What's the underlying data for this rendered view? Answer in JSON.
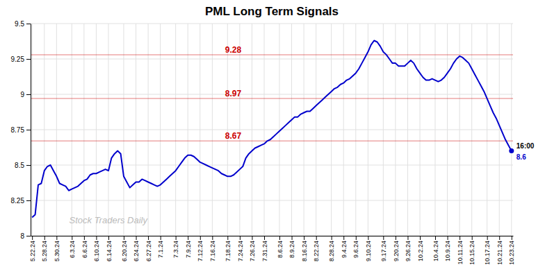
{
  "chart_data": {
    "type": "line",
    "title": "PML Long Term Signals",
    "watermark": "Stock Traders Daily",
    "color": "#0000cc",
    "grid": true,
    "ylim": [
      8.0,
      9.5
    ],
    "yticks": [
      8.0,
      8.25,
      8.5,
      8.75,
      9.0,
      9.25,
      9.5
    ],
    "hlines": [
      {
        "y": 9.28,
        "label": "9.28",
        "color": "#cc0000"
      },
      {
        "y": 8.97,
        "label": "8.97",
        "color": "#cc0000"
      },
      {
        "y": 8.67,
        "label": "8.67",
        "color": "#cc0000"
      }
    ],
    "annotations": [
      {
        "text": "16:00",
        "color": "#000000"
      },
      {
        "text": "8.6",
        "color": "#0000cc"
      }
    ],
    "categories": [
      "5.22.24",
      null,
      null,
      null,
      "5.28.24",
      null,
      null,
      null,
      "5.30.24",
      null,
      null,
      null,
      null,
      "6.3.24",
      null,
      null,
      null,
      "6.6.24",
      null,
      null,
      null,
      "6.10.24",
      null,
      null,
      null,
      "6.14.24",
      null,
      null,
      null,
      null,
      "6.20.24",
      null,
      null,
      null,
      "6.24.24",
      null,
      null,
      null,
      "6.27.24",
      null,
      null,
      null,
      "7.1.24",
      null,
      null,
      null,
      null,
      "7.3.24",
      null,
      null,
      null,
      "7.9.24",
      null,
      null,
      null,
      "7.12.24",
      null,
      null,
      null,
      "7.16.24",
      null,
      null,
      null,
      null,
      "7.18.24",
      null,
      null,
      null,
      "7.24.24",
      null,
      null,
      null,
      "7.26.24",
      null,
      null,
      null,
      "7.31.24",
      null,
      null,
      null,
      null,
      "8.6.24",
      null,
      null,
      null,
      "8.9.24",
      null,
      null,
      null,
      "8.16.24",
      null,
      null,
      null,
      "8.22.24",
      null,
      null,
      null,
      null,
      "8.28.24",
      null,
      null,
      null,
      "9.4.24",
      null,
      null,
      null,
      "9.6.24",
      null,
      null,
      null,
      "9.10.24",
      null,
      null,
      null,
      null,
      "9.17.24",
      null,
      null,
      null,
      "9.20.24",
      null,
      null,
      null,
      "9.26.24",
      null,
      null,
      null,
      "10.2.24",
      null,
      null,
      null,
      null,
      "10.4.24",
      null,
      null,
      null,
      "10.9.24",
      null,
      null,
      null,
      "10.11.24",
      null,
      null,
      null,
      "10.15.24",
      null,
      null,
      null,
      null,
      "10.17.24",
      null,
      null,
      null,
      "10.21.24",
      null,
      null,
      null,
      "10.23.24"
    ],
    "values": [
      8.13,
      8.15,
      8.36,
      8.37,
      8.46,
      8.49,
      8.5,
      8.46,
      8.42,
      8.37,
      8.36,
      8.35,
      8.32,
      8.33,
      8.34,
      8.35,
      8.37,
      8.39,
      8.4,
      8.43,
      8.44,
      8.44,
      8.45,
      8.46,
      8.47,
      8.46,
      8.55,
      8.58,
      8.6,
      8.58,
      8.42,
      8.38,
      8.34,
      8.36,
      8.38,
      8.38,
      8.4,
      8.39,
      8.38,
      8.37,
      8.36,
      8.35,
      8.36,
      8.38,
      8.4,
      8.42,
      8.44,
      8.46,
      8.49,
      8.52,
      8.55,
      8.57,
      8.57,
      8.56,
      8.54,
      8.52,
      8.51,
      8.5,
      8.49,
      8.48,
      8.47,
      8.46,
      8.44,
      8.43,
      8.42,
      8.42,
      8.43,
      8.45,
      8.47,
      8.49,
      8.55,
      8.58,
      8.6,
      8.62,
      8.63,
      8.64,
      8.65,
      8.67,
      8.68,
      8.7,
      8.72,
      8.74,
      8.76,
      8.78,
      8.8,
      8.82,
      8.84,
      8.84,
      8.86,
      8.87,
      8.88,
      8.88,
      8.9,
      8.92,
      8.94,
      8.96,
      8.98,
      9.0,
      9.02,
      9.04,
      9.05,
      9.07,
      9.08,
      9.1,
      9.11,
      9.13,
      9.15,
      9.18,
      9.22,
      9.26,
      9.3,
      9.35,
      9.38,
      9.37,
      9.34,
      9.3,
      9.28,
      9.25,
      9.22,
      9.22,
      9.2,
      9.2,
      9.2,
      9.22,
      9.24,
      9.22,
      9.18,
      9.15,
      9.12,
      9.1,
      9.1,
      9.11,
      9.1,
      9.09,
      9.1,
      9.12,
      9.15,
      9.18,
      9.22,
      9.25,
      9.27,
      9.26,
      9.24,
      9.22,
      9.18,
      9.14,
      9.1,
      9.06,
      9.02,
      8.97,
      8.92,
      8.87,
      8.83,
      8.78,
      8.73,
      8.68,
      8.64,
      8.6
    ]
  }
}
